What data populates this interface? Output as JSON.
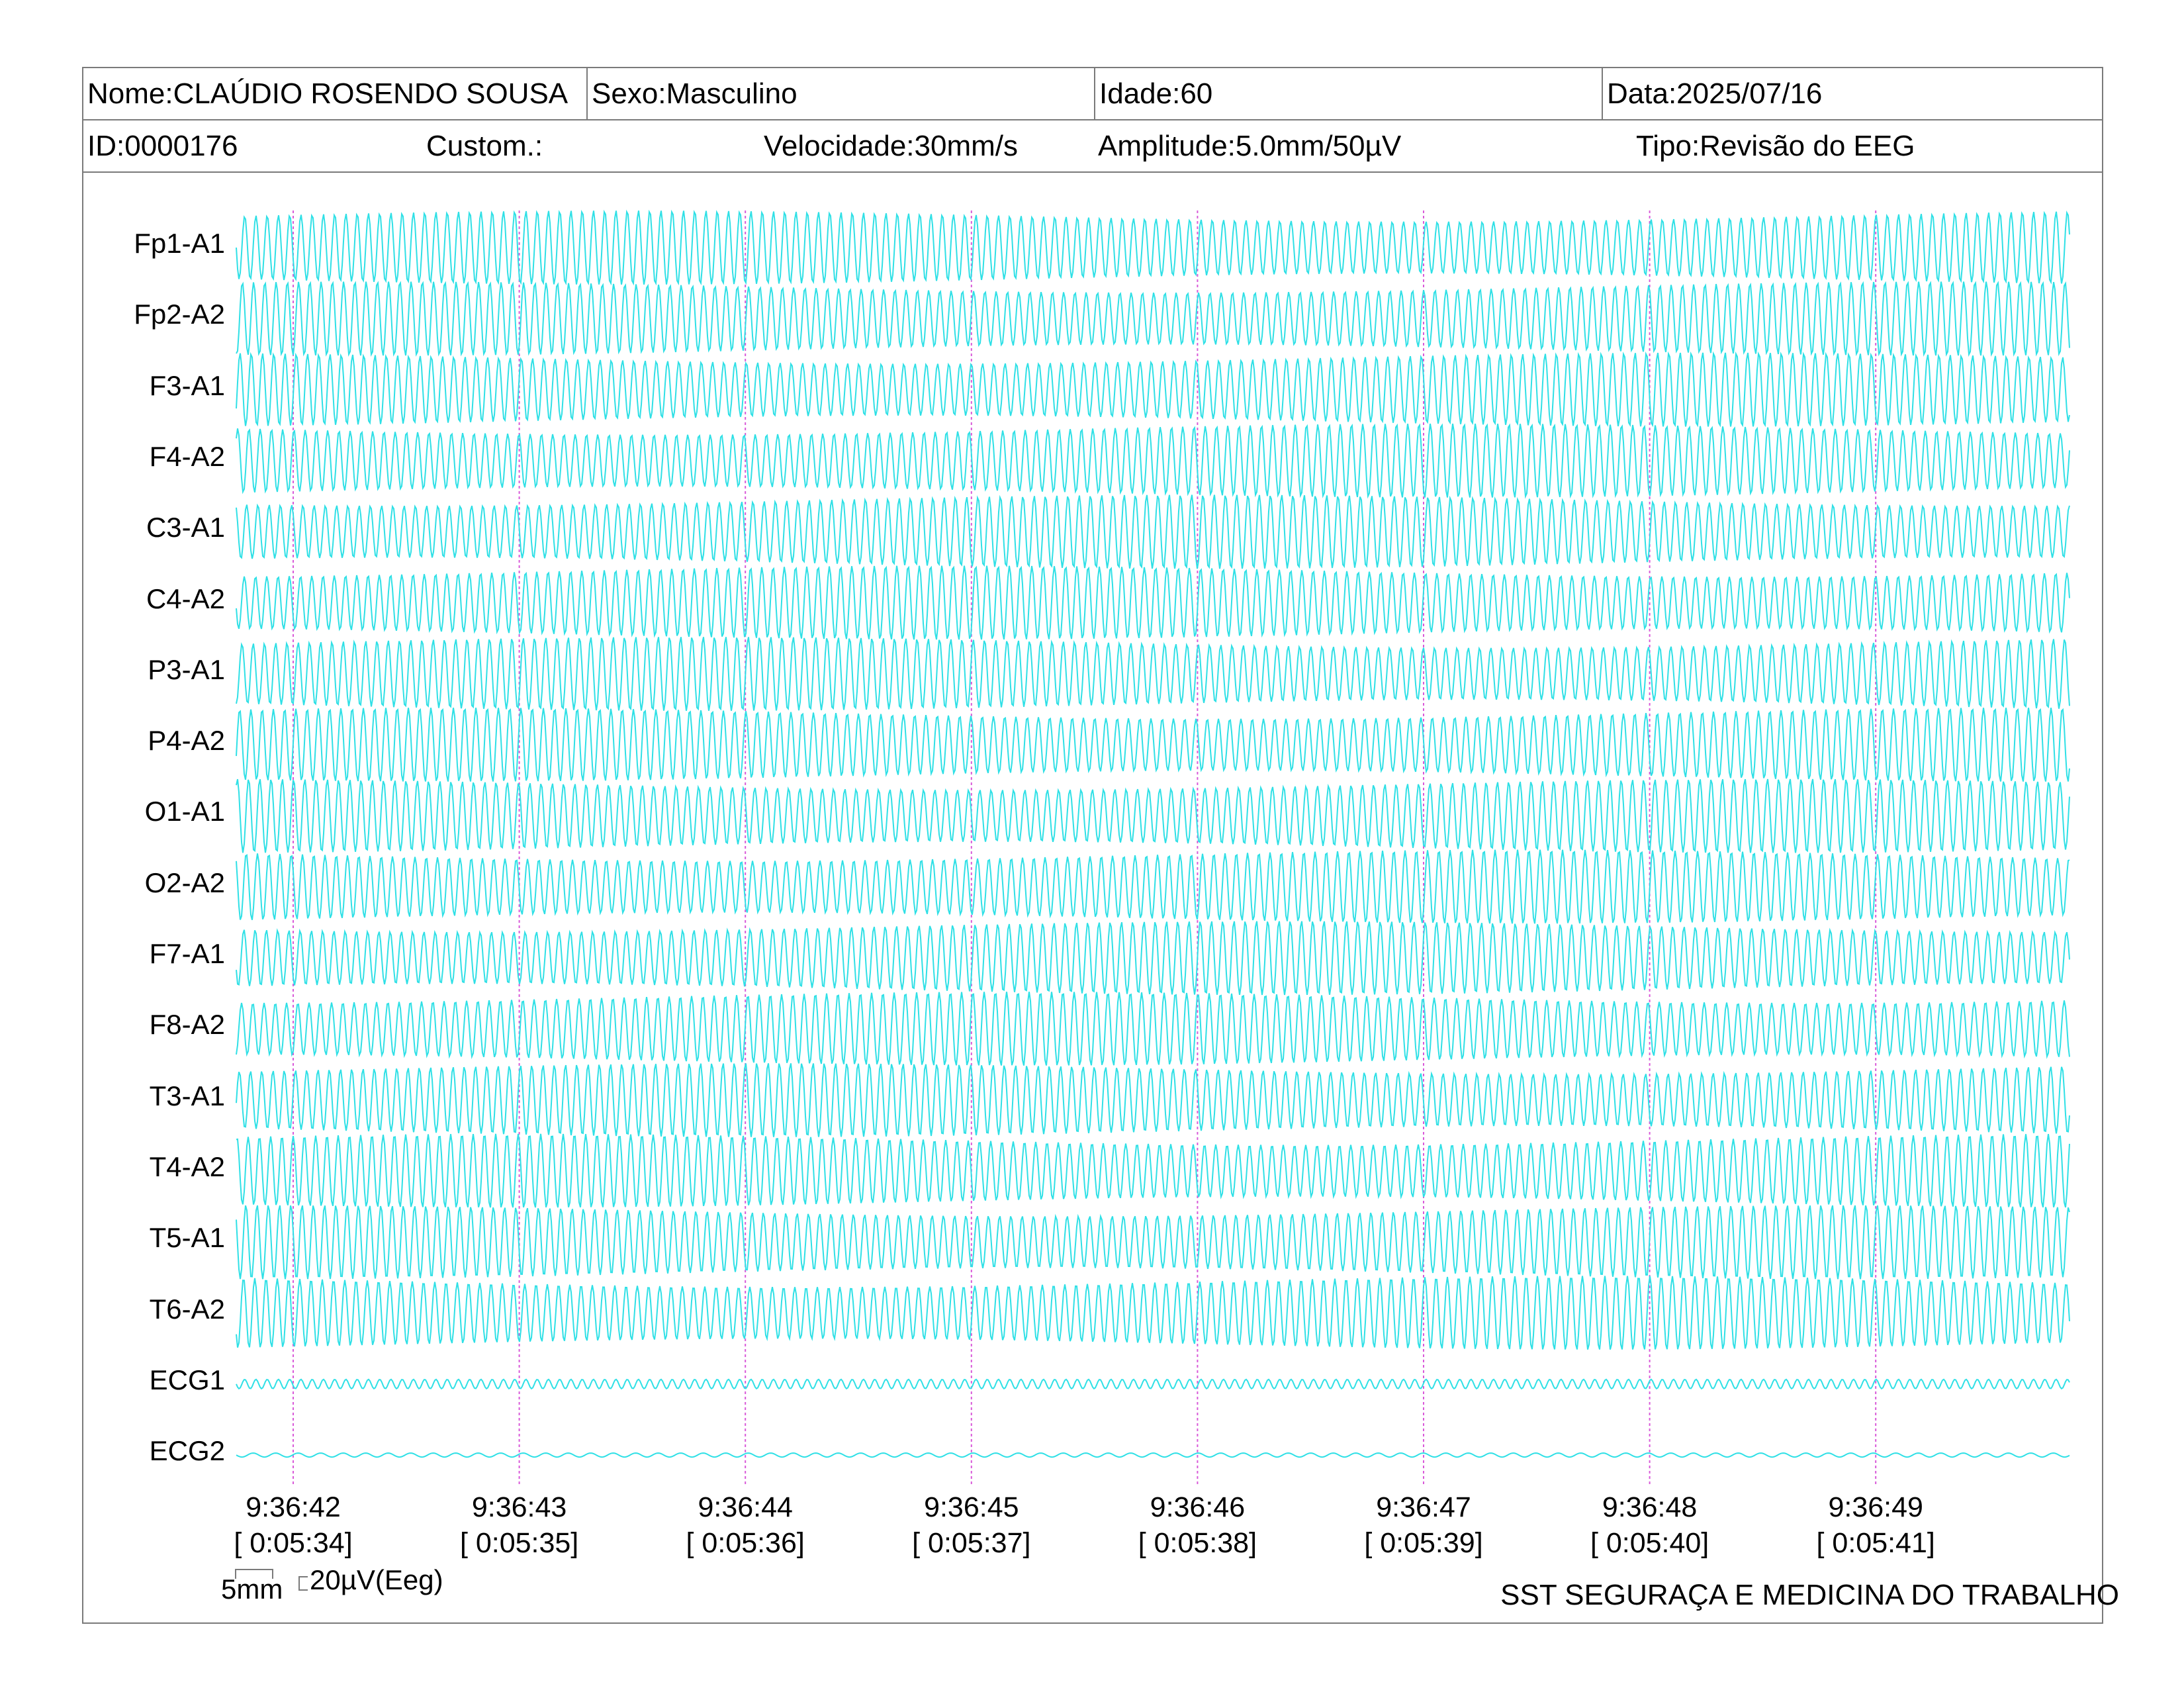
{
  "header": {
    "nome": "Nome:CLAÚDIO ROSENDO SOUSA",
    "sexo": "Sexo:Masculino",
    "idade": "Idade:60",
    "data": "Data:2025/07/16",
    "id": "ID:0000176",
    "custom": "Custom.:",
    "velocidade": "Velocidade:30mm/s",
    "amplitude": "Amplitude:5.0mm/50µV",
    "tipo": "Tipo:Revisão do EEG"
  },
  "channels": [
    "Fp1-A1",
    "Fp2-A2",
    "F3-A1",
    "F4-A2",
    "C3-A1",
    "C4-A2",
    "P3-A1",
    "P4-A2",
    "O1-A1",
    "O2-A2",
    "F7-A1",
    "F8-A2",
    "T3-A1",
    "T4-A2",
    "T5-A1",
    "T6-A2",
    "ECG1",
    "ECG2"
  ],
  "timestamps": [
    {
      "clock": "9:36:42",
      "elapsed": "[ 0:05:34]"
    },
    {
      "clock": "9:36:43",
      "elapsed": "[ 0:05:35]"
    },
    {
      "clock": "9:36:44",
      "elapsed": "[ 0:05:36]"
    },
    {
      "clock": "9:36:45",
      "elapsed": "[ 0:05:37]"
    },
    {
      "clock": "9:36:46",
      "elapsed": "[ 0:05:38]"
    },
    {
      "clock": "9:36:47",
      "elapsed": "[ 0:05:39]"
    },
    {
      "clock": "9:36:48",
      "elapsed": "[ 0:05:40]"
    },
    {
      "clock": "9:36:49",
      "elapsed": "[ 0:05:41]"
    }
  ],
  "scale": {
    "time_bar": "5mm",
    "amplitude_bar": "20µV(Eeg)"
  },
  "footer": {
    "organization": "SST SEGURAÇA E MEDICINA DO TRABALHO"
  },
  "colors": {
    "trace": "#2fe0e6",
    "second_marker": "#d95ad9",
    "border": "#7a7a7a"
  }
}
